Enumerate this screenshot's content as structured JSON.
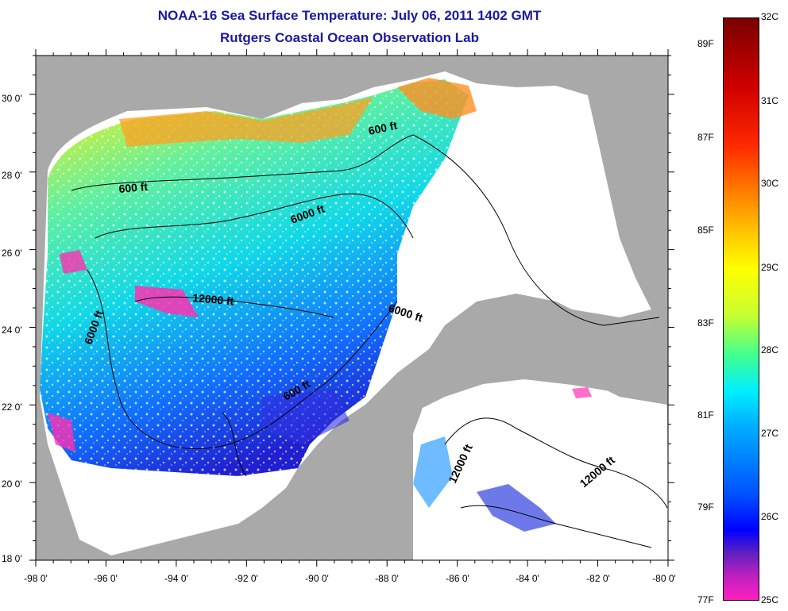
{
  "title_line1": "NOAA-16 Sea Surface Temperature:  July 06, 2011 1402 GMT",
  "title_line2": "Rutgers Coastal Ocean Observation Lab",
  "lat_labels": [
    "30 0'",
    "28 0'",
    "26 0'",
    "24 0'",
    "22 0'",
    "20 0'",
    "18 0'"
  ],
  "lon_labels": [
    "-98 0'",
    "-96 0'",
    "-94 0'",
    "-92 0'",
    "-90 0'",
    "-88 0'",
    "-86 0'",
    "-84 0'",
    "-82 0'",
    "-80 0'"
  ],
  "contour_labels": [
    "600 ft",
    "600 ft",
    "6000 ft",
    "12000 ft",
    "6000 ft",
    "6000 ft",
    "600 ft",
    "12000 ft",
    "12000 ft"
  ],
  "colorbar": {
    "fahrenheit": [
      "89F",
      "87F",
      "85F",
      "83F",
      "81F",
      "79F",
      "77F"
    ],
    "celsius": [
      "32C",
      "31C",
      "30C",
      "29C",
      "28C",
      "27C",
      "26C",
      "25C"
    ]
  },
  "colors": {
    "land": "#a9a9a9",
    "no_data": "#ffffff",
    "title": "#1a1aa0"
  }
}
